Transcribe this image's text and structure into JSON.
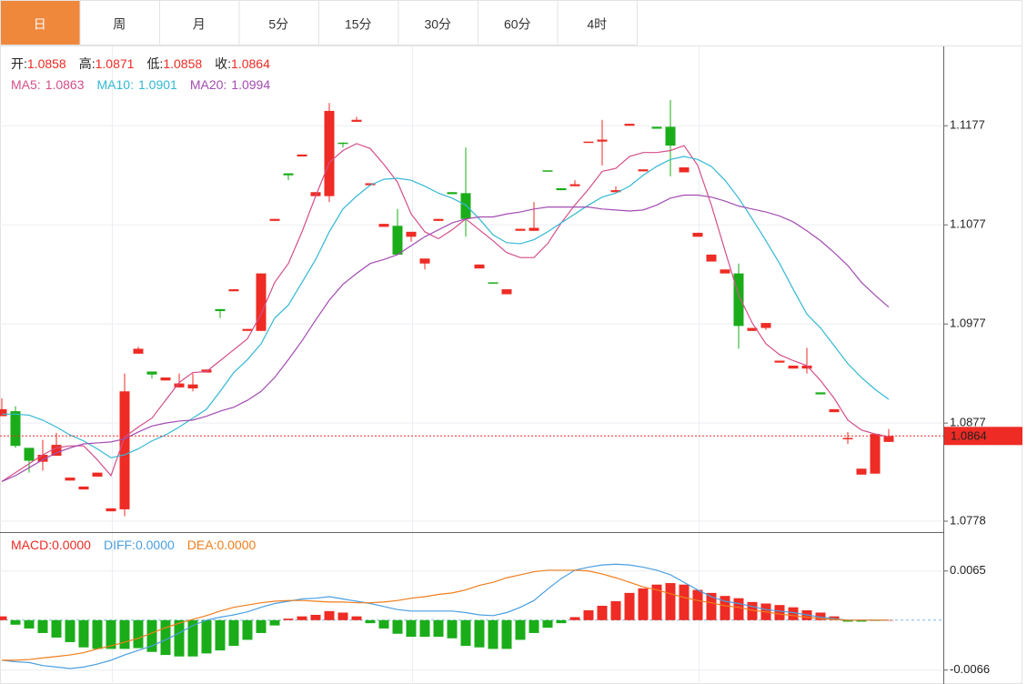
{
  "tabs": [
    "日",
    "周",
    "月",
    "5分",
    "15分",
    "30分",
    "60分",
    "4时"
  ],
  "active_tab": 0,
  "chart_data": [
    {
      "type": "candlestick",
      "up_color": "#ee2b24",
      "down_color": "#1aad19",
      "ohlc_labels": [
        "开:",
        "高:",
        "低:",
        "收:"
      ],
      "open": [
        1.0884,
        1.0889,
        1.0852,
        1.0838,
        1.0844,
        1.0819,
        1.081,
        1.0823,
        1.0788,
        1.079,
        1.0947,
        1.0929,
        1.092,
        1.0913,
        1.0912,
        1.0928,
        1.0992,
        1.101,
        1.097,
        1.097,
        1.1081,
        1.1129,
        1.1146,
        1.1106,
        1.1106,
        1.116,
        1.1181,
        1.1117,
        1.1075,
        1.1076,
        1.1065,
        1.1038,
        1.1081,
        1.111,
        1.1109,
        1.1033,
        1.1019,
        1.1007,
        1.1071,
        1.1071,
        1.1132,
        1.1114,
        1.1116,
        1.116,
        1.1161,
        1.111,
        1.1177,
        1.1131,
        1.1176,
        1.1176,
        1.113,
        1.1065,
        1.104,
        1.1028,
        1.1028,
        1.097,
        1.0973,
        1.0938,
        1.0932,
        1.0932,
        1.0908,
        1.0888,
        1.0861,
        1.0825,
        1.0826,
        1.0858
      ],
      "high": [
        1.0902,
        1.0894,
        1.0852,
        1.086,
        1.0867,
        1.0822,
        1.0813,
        1.0827,
        1.0791,
        1.0927,
        1.0954,
        1.0929,
        1.0923,
        1.0927,
        1.0927,
        1.0931,
        1.0992,
        1.1012,
        1.0972,
        1.1028,
        1.1083,
        1.1129,
        1.1148,
        1.111,
        1.12,
        1.116,
        1.1186,
        1.1119,
        1.1078,
        1.1093,
        1.107,
        1.1043,
        1.1083,
        1.111,
        1.1155,
        1.1037,
        1.1019,
        1.1012,
        1.1073,
        1.11,
        1.1132,
        1.1114,
        1.1122,
        1.1161,
        1.1183,
        1.1116,
        1.1179,
        1.1133,
        1.1176,
        1.1203,
        1.1135,
        1.1069,
        1.1047,
        1.1032,
        1.1038,
        1.0973,
        1.0978,
        1.094,
        1.0935,
        1.0953,
        1.0908,
        1.0891,
        1.0868,
        1.0831,
        1.0866,
        1.0871
      ],
      "low": [
        1.0884,
        1.0852,
        1.0827,
        1.0829,
        1.0844,
        1.0819,
        1.081,
        1.0823,
        1.0788,
        1.0783,
        1.0947,
        1.0922,
        1.092,
        1.0913,
        1.0909,
        1.0928,
        1.0983,
        1.101,
        1.097,
        1.097,
        1.1081,
        1.1122,
        1.1146,
        1.1106,
        1.11,
        1.1155,
        1.1181,
        1.1117,
        1.1075,
        1.1047,
        1.106,
        1.1032,
        1.1081,
        1.1108,
        1.1065,
        1.1033,
        1.1018,
        1.1007,
        1.1071,
        1.1071,
        1.1131,
        1.1112,
        1.1116,
        1.116,
        1.1137,
        1.111,
        1.1177,
        1.1131,
        1.1174,
        1.1126,
        1.113,
        1.1065,
        1.104,
        1.1028,
        1.0952,
        1.097,
        1.0971,
        1.0938,
        1.0932,
        1.0927,
        1.0906,
        1.0888,
        1.0856,
        1.0825,
        1.0826,
        1.0858
      ],
      "close": [
        1.0891,
        1.0854,
        1.0839,
        1.0845,
        1.0855,
        1.0822,
        1.0813,
        1.0827,
        1.0791,
        1.0909,
        1.0952,
        1.0926,
        1.0923,
        1.0917,
        1.0916,
        1.0931,
        1.099,
        1.1012,
        1.0972,
        1.1028,
        1.1083,
        1.1127,
        1.1148,
        1.111,
        1.1192,
        1.1159,
        1.1183,
        1.1119,
        1.1078,
        1.1047,
        1.107,
        1.1043,
        1.1083,
        1.1108,
        1.1083,
        1.1037,
        1.1018,
        1.1012,
        1.1073,
        1.1074,
        1.1131,
        1.1112,
        1.1118,
        1.1161,
        1.1163,
        1.1112,
        1.1179,
        1.1133,
        1.1174,
        1.1157,
        1.1135,
        1.1069,
        1.1047,
        1.1032,
        1.0975,
        1.0973,
        1.0978,
        1.094,
        1.0935,
        1.0935,
        1.0906,
        1.0891,
        1.0862,
        1.0831,
        1.0866,
        1.0864
      ],
      "ma": [
        {
          "name": "MA5:",
          "color": "#d44f8a",
          "values": [
            1.0818,
            1.0827,
            1.0836,
            1.0845,
            1.0852,
            1.0854,
            1.0854,
            1.084,
            1.0824,
            1.0863,
            1.0873,
            1.0882,
            1.09,
            1.0918,
            1.0928,
            1.0929,
            1.094,
            1.0951,
            1.0962,
            1.0987,
            1.1019,
            1.1038,
            1.107,
            1.1106,
            1.114,
            1.1152,
            1.1159,
            1.1154,
            1.1138,
            1.112,
            1.1088,
            1.107,
            1.1063,
            1.1072,
            1.1083,
            1.1072,
            1.1061,
            1.1049,
            1.1044,
            1.1044,
            1.1058,
            1.1079,
            1.1097,
            1.1113,
            1.1131,
            1.1134,
            1.1146,
            1.115,
            1.115,
            1.1152,
            1.1157,
            1.1137,
            1.1097,
            1.1051,
            1.1006,
            1.0978,
            1.0957,
            1.0946,
            1.094,
            1.0935,
            1.092,
            1.0902,
            1.088,
            1.087,
            1.0866,
            1.0863
          ]
        },
        {
          "name": "MA10:",
          "color": "#33b8d4",
          "values": [
            1.0886,
            1.0886,
            1.0885,
            1.088,
            1.0873,
            1.0865,
            1.0859,
            1.0851,
            1.0842,
            1.0845,
            1.0851,
            1.0859,
            1.0865,
            1.0873,
            1.0882,
            1.0891,
            1.0909,
            1.0928,
            1.0941,
            1.0957,
            1.0983,
            1.0996,
            1.1019,
            1.1042,
            1.107,
            1.1093,
            1.1106,
            1.1117,
            1.1123,
            1.1124,
            1.1122,
            1.1116,
            1.1109,
            1.1104,
            1.1097,
            1.1083,
            1.1067,
            1.1059,
            1.1058,
            1.1062,
            1.107,
            1.1079,
            1.1088,
            1.1097,
            1.1105,
            1.1109,
            1.1116,
            1.1127,
            1.1136,
            1.1143,
            1.1146,
            1.1143,
            1.1136,
            1.1122,
            1.1104,
            1.1083,
            1.1061,
            1.1038,
            1.1012,
            1.0987,
            1.0973,
            1.0955,
            1.0937,
            1.0923,
            1.0911,
            1.0901
          ]
        },
        {
          "name": "MA20:",
          "color": "#a34cb2",
          "values": [
            1.0818,
            1.0824,
            1.0832,
            1.084,
            1.0847,
            1.0852,
            1.0856,
            1.0857,
            1.0858,
            1.0861,
            1.0868,
            1.0874,
            1.0877,
            1.0879,
            1.088,
            1.0884,
            1.0889,
            1.0893,
            1.09,
            1.0909,
            1.0923,
            1.0941,
            1.096,
            1.0981,
            1.1001,
            1.1017,
            1.1028,
            1.1038,
            1.1042,
            1.1047,
            1.1056,
            1.1065,
            1.1072,
            1.1079,
            1.1083,
            1.1085,
            1.1085,
            1.1088,
            1.109,
            1.1093,
            1.1095,
            1.1095,
            1.1095,
            1.1095,
            1.1093,
            1.1092,
            1.1091,
            1.1092,
            1.1097,
            1.1104,
            1.1107,
            1.1107,
            1.1105,
            1.1101,
            1.1096,
            1.1093,
            1.109,
            1.1086,
            1.108,
            1.1071,
            1.1061,
            1.1049,
            1.1036,
            1.1019,
            1.1006,
            1.0994
          ]
        }
      ],
      "ylim": [
        1.0767,
        1.1258
      ],
      "yticks": [
        1.1177,
        1.1077,
        1.0977,
        1.0877,
        1.0778
      ],
      "grid": true
    },
    {
      "type": "macd",
      "up_color": "#ee2b24",
      "down_color": "#1aad19",
      "series": [
        {
          "name": "MACD:",
          "color": "#ee2b24",
          "legend_value": "0.0000",
          "values": [
            0.0005,
            -0.0006,
            -0.0011,
            -0.0017,
            -0.0023,
            -0.0029,
            -0.0036,
            -0.0038,
            -0.0038,
            -0.0038,
            -0.0037,
            -0.0042,
            -0.0046,
            -0.0048,
            -0.0048,
            -0.0044,
            -0.004,
            -0.0034,
            -0.0026,
            -0.0017,
            -0.0007,
            0.0002,
            0.0005,
            0.0007,
            0.0012,
            0.001,
            0.0005,
            -0.0004,
            -0.0011,
            -0.0018,
            -0.0022,
            -0.0022,
            -0.0022,
            -0.0024,
            -0.0034,
            -0.0036,
            -0.0038,
            -0.0038,
            -0.0026,
            -0.0017,
            -0.001,
            -0.0004,
            0.0004,
            0.0013,
            0.0019,
            0.0025,
            0.0036,
            0.0042,
            0.0047,
            0.0049,
            0.0047,
            0.004,
            0.0036,
            0.0032,
            0.0029,
            0.0024,
            0.0022,
            0.002,
            0.0017,
            0.0013,
            0.001,
            0.0005,
            -0.0002,
            -0.0002,
            -0.0001,
            0
          ]
        },
        {
          "name": "DIFF:",
          "color": "#4a9fe0",
          "legend_value": "0.0000",
          "values": [
            -0.0053,
            -0.0055,
            -0.0056,
            -0.006,
            -0.0062,
            -0.0064,
            -0.0062,
            -0.0058,
            -0.0053,
            -0.0046,
            -0.004,
            -0.0034,
            -0.0026,
            -0.0017,
            -0.0007,
            0,
            0.0004,
            0.0007,
            0.0011,
            0.0017,
            0.0022,
            0.0025,
            0.0028,
            0.0029,
            0.0031,
            0.0028,
            0.0025,
            0.0022,
            0.0018,
            0.0014,
            0.0012,
            0.0012,
            0.0012,
            0.0012,
            0.001,
            0.0007,
            0.0006,
            0.001,
            0.0017,
            0.0026,
            0.0041,
            0.0055,
            0.0066,
            0.007,
            0.0073,
            0.0074,
            0.0073,
            0.007,
            0.0066,
            0.006,
            0.005,
            0.004,
            0.0031,
            0.0025,
            0.0022,
            0.0018,
            0.0014,
            0.0012,
            0.001,
            0.0007,
            0.0004,
            0.0002,
            0,
            0,
            0,
            0
          ]
        },
        {
          "name": "DEA:",
          "color": "#ef7d1b",
          "legend_value": "0.0000",
          "values": [
            -0.0053,
            -0.0053,
            -0.0052,
            -0.005,
            -0.0048,
            -0.0046,
            -0.0043,
            -0.0038,
            -0.0034,
            -0.0029,
            -0.0024,
            -0.0017,
            -0.001,
            -0.0004,
            0.0001,
            0.0006,
            0.0012,
            0.0017,
            0.002,
            0.0023,
            0.0025,
            0.0026,
            0.0026,
            0.0025,
            0.0024,
            0.0024,
            0.0023,
            0.0023,
            0.0024,
            0.0026,
            0.0029,
            0.0031,
            0.0034,
            0.0036,
            0.004,
            0.0046,
            0.005,
            0.0056,
            0.006,
            0.0064,
            0.0066,
            0.0066,
            0.0066,
            0.0065,
            0.0061,
            0.0056,
            0.005,
            0.0044,
            0.004,
            0.0035,
            0.003,
            0.0026,
            0.0023,
            0.0019,
            0.0017,
            0.0013,
            0.0011,
            0.0008,
            0.0006,
            0.0004,
            0.0002,
            0.0001,
            0,
            0,
            0,
            0
          ]
        }
      ],
      "ylim": [
        -0.0082,
        0.0114
      ],
      "yticks": [
        0.0065,
        -0.0066
      ],
      "grid": true
    }
  ]
}
